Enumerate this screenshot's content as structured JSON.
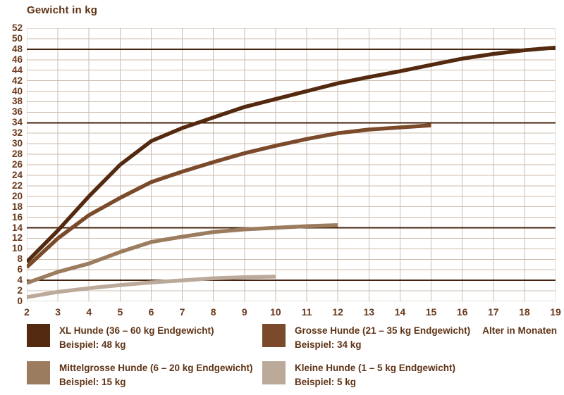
{
  "page": {
    "title": "Gewicht in kg",
    "x_axis_label": "Alter in Monaten"
  },
  "colors": {
    "text": "#5f3316",
    "tick_text": "#6b3a1c",
    "grid": "#cdbcac",
    "reference_line": "#45220d",
    "background": "#ffffff"
  },
  "chart_data": {
    "type": "line",
    "title": "Gewicht in kg",
    "xlabel": "Alter in Monaten",
    "ylabel": "Gewicht in kg",
    "xlim": [
      2,
      19
    ],
    "ylim": [
      0,
      52
    ],
    "ytick_step": 2,
    "xticks": [
      2,
      3,
      4,
      5,
      6,
      7,
      8,
      9,
      10,
      11,
      12,
      13,
      14,
      15,
      16,
      17,
      18,
      19
    ],
    "yticks": [
      0,
      2,
      4,
      6,
      8,
      10,
      12,
      14,
      16,
      18,
      20,
      22,
      24,
      26,
      28,
      30,
      32,
      34,
      36,
      38,
      40,
      42,
      44,
      46,
      48,
      50,
      52
    ],
    "grid": true,
    "legend_position": "bottom",
    "reference_lines": [
      48,
      34,
      14,
      4
    ],
    "series": [
      {
        "name": "XL Hunde (36 – 60 kg Endgewicht)",
        "example": "Beispiel: 48 kg",
        "color": "#53290f",
        "start_month": 2,
        "values": [
          7.5,
          13.5,
          20,
          26,
          30.5,
          33,
          35,
          37,
          38.5,
          40,
          41.5,
          42.7,
          43.8,
          45,
          46.2,
          47.1,
          47.8,
          48.3
        ]
      },
      {
        "name": "Grosse Hunde (21 – 35 kg Endgewicht)",
        "example": "Beispiel: 34 kg",
        "color": "#7b4a2b",
        "start_month": 2,
        "values": [
          6.5,
          12,
          16.4,
          19.7,
          22.7,
          24.7,
          26.5,
          28.2,
          29.6,
          30.9,
          32,
          32.7,
          33.1,
          33.5
        ]
      },
      {
        "name": "Mittelgrosse Hunde (6 – 20 kg Endgewicht)",
        "example": "Beispiel: 15 kg",
        "color": "#9c7c5f",
        "start_month": 2,
        "values": [
          3.5,
          5.6,
          7.2,
          9.4,
          11.3,
          12.3,
          13.2,
          13.7,
          14.0,
          14.3,
          14.5
        ]
      },
      {
        "name": "Kleine Hunde (1 – 5 kg Endgewicht)",
        "example": "Beispiel: 5 kg",
        "color": "#bba99a",
        "start_month": 2,
        "values": [
          0.8,
          1.8,
          2.5,
          3.1,
          3.6,
          4.0,
          4.4,
          4.6,
          4.7
        ]
      }
    ]
  }
}
